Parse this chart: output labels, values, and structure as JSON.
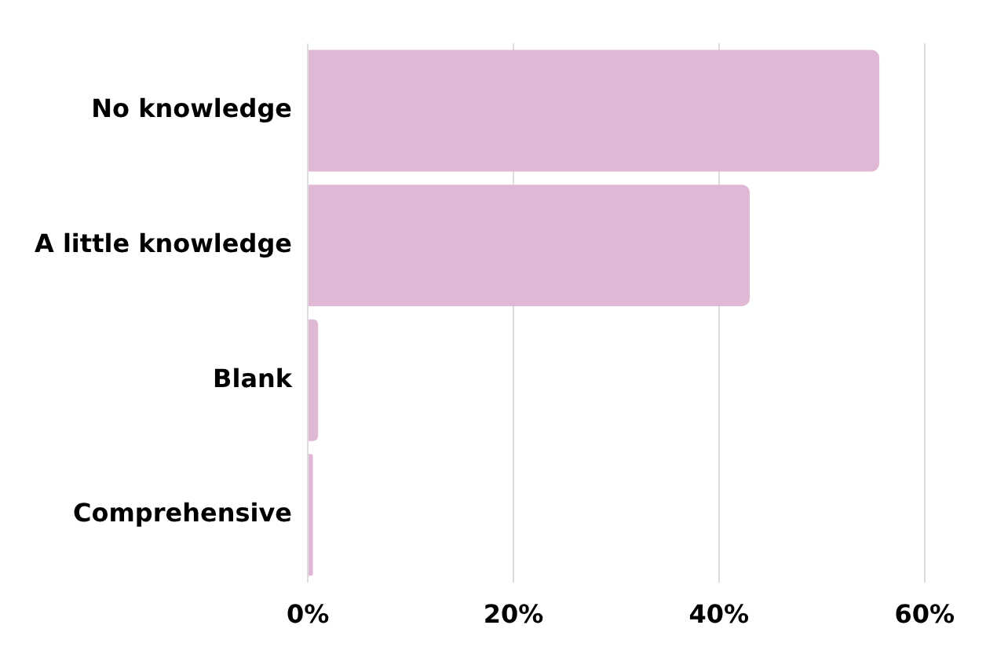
{
  "chart_data": {
    "type": "bar",
    "orientation": "horizontal",
    "categories": [
      "No knowledge",
      "A little knowledge",
      "Blank",
      "Comprehensive"
    ],
    "values": [
      55.6,
      43.0,
      1.0,
      0.5
    ],
    "color": "#e0b8d6",
    "xlim": [
      0,
      60
    ],
    "xticks": [
      {
        "value": 0,
        "label": "0%"
      },
      {
        "value": 20,
        "label": "20%"
      },
      {
        "value": 40,
        "label": "40%"
      },
      {
        "value": 60,
        "label": "60%"
      }
    ],
    "grid": "x",
    "legend": false
  }
}
